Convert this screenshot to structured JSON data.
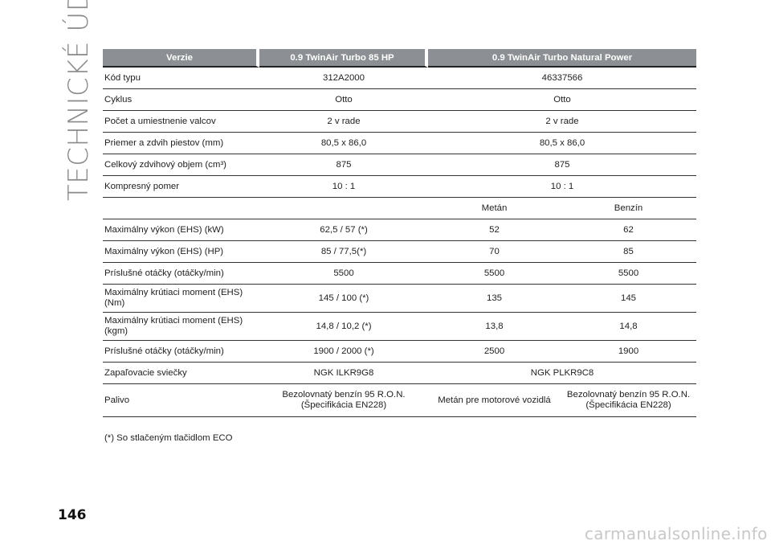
{
  "section_title": "TECHNICKÉ ÚDAJE",
  "page_number": "146",
  "header": {
    "col1": "Verzie",
    "col2": "0.9 TwinAir Turbo 85 HP",
    "col3": "0.9 TwinAir Turbo Natural Power"
  },
  "rows": {
    "kod": {
      "label": "Kód typu",
      "v1": "312A2000",
      "v2": "46337566"
    },
    "cyklus": {
      "label": "Cyklus",
      "v1": "Otto",
      "v2": "Otto"
    },
    "valce": {
      "label": "Počet a umiestnenie valcov",
      "v1": "2 v rade",
      "v2": "2 v rade"
    },
    "priemer": {
      "label": "Priemer a zdvih piestov (mm)",
      "v1": "80,5 x 86,0",
      "v2": "80,5 x 86,0"
    },
    "objem": {
      "label": "Celkový zdvihový objem (cm³)",
      "v1": "875",
      "v2": "875"
    },
    "kompresny": {
      "label": "Kompresný pomer",
      "v1": "10 : 1",
      "v2": "10 : 1"
    },
    "palivo_head": {
      "metan": "Metán",
      "benzin": "Benzín"
    },
    "vykon_kw": {
      "label": "Maximálny výkon (EHS) (kW)",
      "v1": "62,5 / 57 (*)",
      "v2": "52",
      "v3": "62"
    },
    "vykon_hp": {
      "label": "Maximálny výkon (EHS) (HP)",
      "v1": "85 / 77,5(*)",
      "v2": "70",
      "v3": "85"
    },
    "otacky1": {
      "label": "Príslušné otáčky (otáčky/min)",
      "v1": "5500",
      "v2": "5500",
      "v3": "5500"
    },
    "moment_nm": {
      "label": "Maximálny krútiaci moment (EHS) (Nm)",
      "v1": "145 / 100 (*)",
      "v2": "135",
      "v3": "145"
    },
    "moment_kgm": {
      "label": "Maximálny krútiaci moment (EHS) (kgm)",
      "v1": "14,8 / 10,2 (*)",
      "v2": "13,8",
      "v3": "14,8"
    },
    "otacky2": {
      "label": "Príslušné otáčky (otáčky/min)",
      "v1": "1900 / 2000 (*)",
      "v2": "2500",
      "v3": "1900"
    },
    "sviecky": {
      "label": "Zapaľovacie sviečky",
      "v1": "NGK ILKR9G8",
      "v2": "NGK PLKR9C8"
    },
    "palivo": {
      "label": "Palivo",
      "v1": "Bezolovnatý benzín 95 R.O.N. (Špecifikácia EN228)",
      "v2": "Metán pre motorové vozidlá",
      "v3": "Bezolovnatý benzín 95 R.O.N. (Špecifikácia EN228)"
    }
  },
  "footnote": "(*) So stlačeným tlačidlom ECO",
  "watermark": "carmanualsonline.info"
}
